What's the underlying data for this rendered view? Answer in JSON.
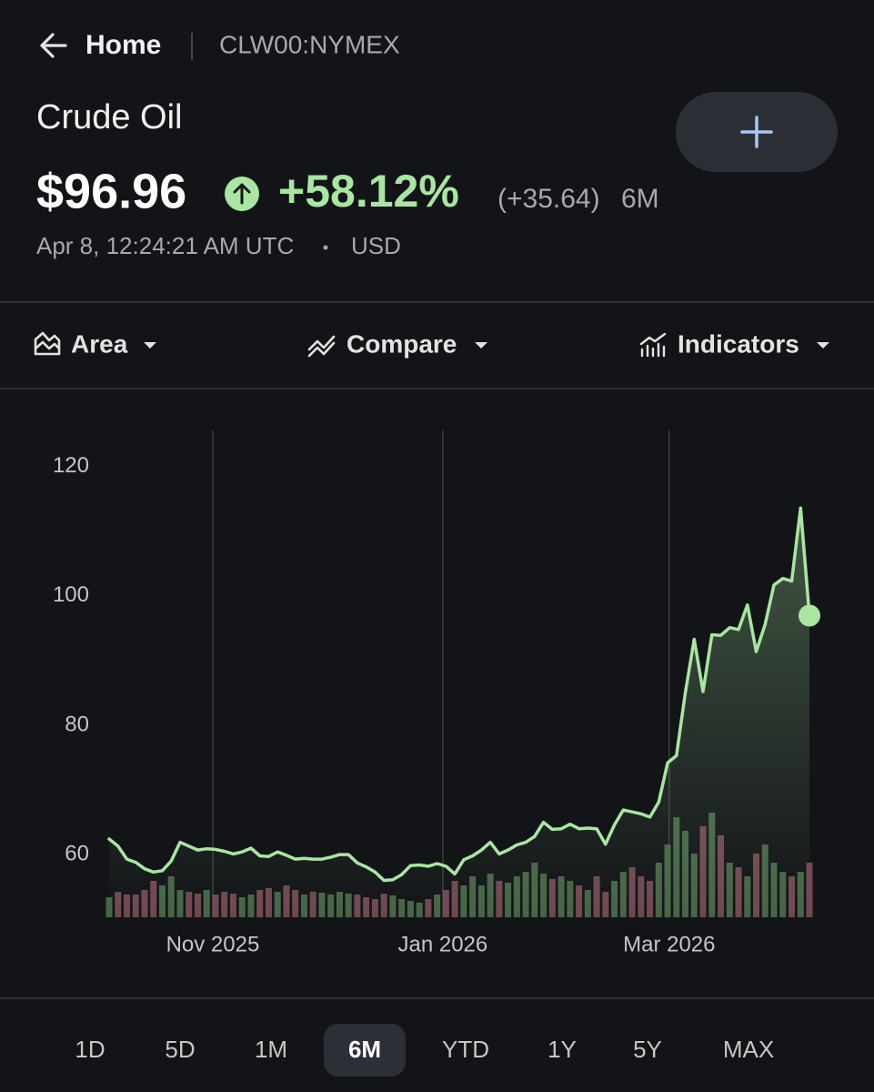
{
  "header": {
    "back_label": "Home",
    "symbol": "CLW00:NYMEX"
  },
  "quote": {
    "name": "Crude Oil",
    "price": "$96.96",
    "change_percent": "+58.12%",
    "change_abs": "(+35.64)",
    "period": "6M",
    "timestamp": "Apr 8, 12:24:21 AM UTC",
    "currency": "USD"
  },
  "toolbar": {
    "items": [
      "Area",
      "Compare",
      "Indicators"
    ]
  },
  "chart_data": {
    "type": "area",
    "color": "#a8e6a1",
    "values": [
      62.4,
      61.3,
      59.3,
      58.8,
      57.8,
      57.3,
      57.5,
      59.0,
      61.9,
      61.3,
      60.7,
      60.9,
      60.8,
      60.5,
      60.1,
      60.4,
      61.0,
      59.8,
      59.7,
      60.4,
      59.9,
      59.3,
      59.4,
      59.3,
      59.3,
      59.6,
      60.0,
      60.0,
      58.7,
      58.1,
      57.3,
      56.0,
      56.1,
      56.9,
      58.3,
      58.4,
      58.2,
      58.6,
      58.2,
      57.0,
      59.2,
      59.8,
      60.7,
      61.9,
      60.1,
      60.7,
      61.5,
      61.9,
      62.8,
      65.0,
      63.9,
      64.0,
      64.7,
      64.0,
      64.1,
      64.0,
      61.6,
      64.6,
      66.9,
      66.6,
      66.3,
      65.8,
      68.1,
      74.2,
      75.3,
      85.0,
      93.3,
      85.2,
      94.0,
      93.9,
      95.1,
      94.8,
      98.6,
      91.4,
      95.6,
      101.7,
      102.7,
      102.3,
      113.6,
      96.96
    ],
    "xlim": [
      0,
      79
    ],
    "xticks": [
      {
        "value": 11.69,
        "label": "Nov 2025"
      },
      {
        "value": 37.64,
        "label": "Jan 2026"
      },
      {
        "value": 63.18,
        "label": "Mar 2026"
      }
    ],
    "ylim": [
      50.3,
      125.6
    ],
    "yticks": [
      60,
      80,
      100,
      120
    ],
    "grid": true,
    "volume": {
      "up_color": "#4d6e4b",
      "down_color": "#7b4e58",
      "lim": [
        0,
        130
      ],
      "values": [
        22,
        28,
        25,
        25,
        30,
        40,
        35,
        45,
        30,
        28,
        26,
        30,
        25,
        28,
        26,
        22,
        25,
        30,
        32,
        28,
        35,
        30,
        25,
        28,
        27,
        25,
        28,
        26,
        25,
        22,
        20,
        26,
        24,
        20,
        18,
        16,
        20,
        25,
        30,
        40,
        35,
        45,
        35,
        48,
        40,
        38,
        45,
        50,
        60,
        48,
        42,
        45,
        40,
        35,
        30,
        45,
        28,
        40,
        50,
        55,
        45,
        40,
        60,
        80,
        110,
        95,
        70,
        100,
        115,
        90,
        60,
        55,
        45,
        70,
        80,
        60,
        50,
        45,
        50,
        60
      ]
    }
  },
  "ranges": {
    "items": [
      "1D",
      "5D",
      "1M",
      "6M",
      "YTD",
      "1Y",
      "5Y",
      "MAX"
    ],
    "selected": 3
  }
}
